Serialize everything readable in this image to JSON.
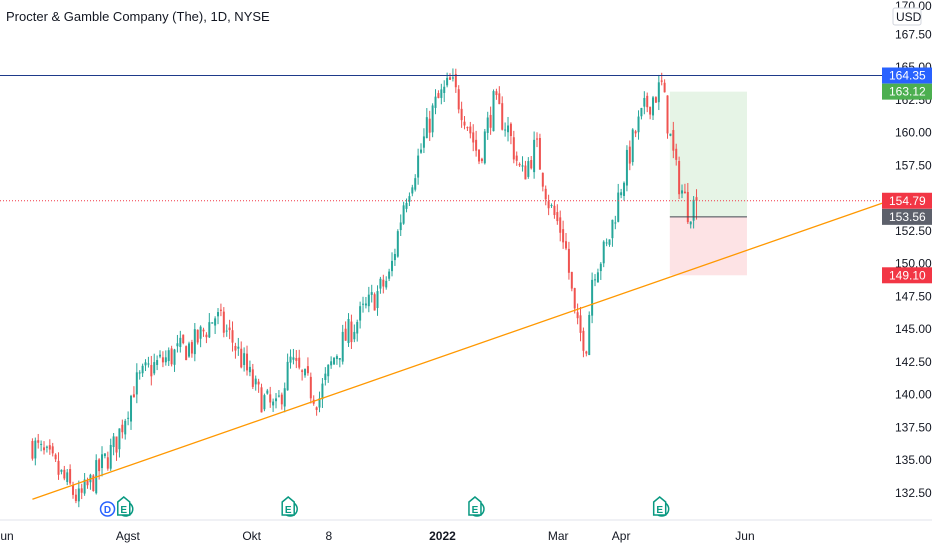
{
  "chart_data": {
    "type": "candlestick",
    "title": "Procter & Gamble Company (The), 1D, NYSE",
    "currency": "USD",
    "y_top_tick": "170.00",
    "y_ticks": [
      "167.50",
      "165.00",
      "162.50",
      "160.00",
      "157.50",
      "155.00",
      "152.50",
      "150.00",
      "147.50",
      "145.00",
      "142.50",
      "140.00",
      "137.50",
      "135.00",
      "132.50"
    ],
    "ylim": [
      130.5,
      171.0
    ],
    "x_ticks": [
      "Jun",
      "Agst",
      "Okt",
      "8",
      "2022",
      "Mar",
      "Apr",
      "Jun"
    ],
    "colors": {
      "up": "#26a69a",
      "down": "#ef5350",
      "trendline": "#ff9800",
      "resistance": "#1e3a8a",
      "target": "#4caf50",
      "stop": "#f23645",
      "last": "#f23645",
      "entry": "#5d606b"
    },
    "price_tags": [
      {
        "label": "164.35",
        "value": 164.35,
        "color": "#2962ff"
      },
      {
        "label": "163.12",
        "value": 163.12,
        "color": "#4caf50"
      },
      {
        "label": "154.79",
        "value": 154.79,
        "color": "#f23645"
      },
      {
        "label": "153.56",
        "value": 153.56,
        "color": "#5d606b"
      },
      {
        "label": "149.10",
        "value": 149.1,
        "color": "#f23645"
      }
    ],
    "levels": {
      "resistance": 164.35,
      "last_price": 154.79
    },
    "trendline": {
      "start": [
        "2021-06-15",
        132.0
      ],
      "end": [
        "2022-06-30",
        154.6
      ]
    },
    "position": {
      "entry": 153.56,
      "target": 163.12,
      "stop": 149.1,
      "start": "2022-04-25",
      "end": "2022-06-02"
    },
    "events": [
      {
        "label": "D",
        "type": "dividend",
        "date": "2021-07-22"
      },
      {
        "label": "E",
        "type": "earnings",
        "date": "2021-07-30"
      },
      {
        "label": "E",
        "type": "earnings",
        "date": "2021-10-19"
      },
      {
        "label": "E",
        "type": "earnings",
        "date": "2022-01-19"
      },
      {
        "label": "E",
        "type": "earnings",
        "date": "2022-04-20"
      }
    ],
    "series_keypoints": [
      [
        "2021-06-15",
        136.2
      ],
      [
        "2021-06-24",
        134.8
      ],
      [
        "2021-07-01",
        133.4
      ],
      [
        "2021-07-08",
        131.9
      ],
      [
        "2021-07-16",
        133.8
      ],
      [
        "2021-07-26",
        136.2
      ],
      [
        "2021-08-04",
        140.6
      ],
      [
        "2021-08-12",
        142.0
      ],
      [
        "2021-08-23",
        143.0
      ],
      [
        "2021-09-03",
        143.9
      ],
      [
        "2021-09-13",
        146.0
      ],
      [
        "2021-09-22",
        144.0
      ],
      [
        "2021-10-04",
        140.0
      ],
      [
        "2021-10-13",
        138.7
      ],
      [
        "2021-10-20",
        142.5
      ],
      [
        "2021-10-27",
        141.0
      ],
      [
        "2021-11-03",
        139.6
      ],
      [
        "2021-11-11",
        143.0
      ],
      [
        "2021-11-19",
        145.0
      ],
      [
        "2021-11-30",
        147.3
      ],
      [
        "2021-12-08",
        149.0
      ],
      [
        "2021-12-15",
        154.8
      ],
      [
        "2021-12-22",
        158.0
      ],
      [
        "2021-12-30",
        162.0
      ],
      [
        "2022-01-07",
        163.8
      ],
      [
        "2022-01-14",
        161.4
      ],
      [
        "2022-01-21",
        158.0
      ],
      [
        "2022-01-28",
        162.2
      ],
      [
        "2022-02-04",
        160.4
      ],
      [
        "2022-02-11",
        156.6
      ],
      [
        "2022-02-18",
        159.0
      ],
      [
        "2022-02-25",
        154.3
      ],
      [
        "2022-03-04",
        152.0
      ],
      [
        "2022-03-10",
        145.0
      ],
      [
        "2022-03-15",
        144.0
      ],
      [
        "2022-03-18",
        149.5
      ],
      [
        "2022-03-25",
        151.2
      ],
      [
        "2022-04-01",
        156.0
      ],
      [
        "2022-04-08",
        160.0
      ],
      [
        "2022-04-14",
        162.2
      ],
      [
        "2022-04-21",
        163.5
      ],
      [
        "2022-04-28",
        157.0
      ],
      [
        "2022-05-04",
        154.1
      ],
      [
        "2022-05-09",
        154.8
      ]
    ]
  }
}
